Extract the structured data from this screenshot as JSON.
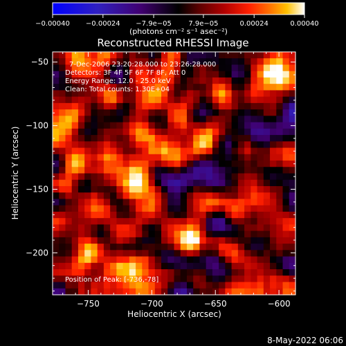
{
  "chart_data": {
    "type": "heatmap",
    "title": "Reconstructed RHESSI Image",
    "xlabel": "Heliocentric X (arcsec)",
    "ylabel": "Heliocentric Y (arcsec)",
    "xlim": [
      -778,
      -587
    ],
    "ylim": [
      -233,
      -42
    ],
    "x_ticks": [
      -750,
      -700,
      -650,
      -600
    ],
    "y_ticks": [
      -50,
      -100,
      -150,
      -200
    ],
    "x_tick_labels": [
      "−750",
      "−700",
      "−650",
      "−600"
    ],
    "y_tick_labels": [
      "−50",
      "−100",
      "−150",
      "−200"
    ],
    "colorbar": {
      "range": [
        -0.0004,
        0.0004
      ],
      "ticks": [
        -0.0004,
        -0.00024,
        -7.9e-05,
        7.9e-05,
        0.00024,
        0.0004
      ],
      "tick_labels": [
        "−0.00040",
        "−0.00024",
        "−7.9e−05",
        "7.9e−05",
        "0.00024",
        "0.00040"
      ],
      "units_label": "(photons cm⁻² s⁻¹ asec⁻²)",
      "stops": [
        "#0000ff",
        "#3020c0",
        "#400070",
        "#000000",
        "#5a0000",
        "#b00000",
        "#ff2000",
        "#ff7000",
        "#ffc000",
        "#ffffff"
      ]
    },
    "annotations": [
      "7-Dec-2006 23:20:28.000 to 23:26:28.000",
      "Detectors: 3F 4F 5F 6F 7F 8F, Att 0",
      "Energy Range: 12.0 - 25.0 keV",
      "Clean:  Total counts: 1.30E+04"
    ],
    "peak_label": "Position of Peak: [-736,-78]",
    "peak_position": [
      -736,
      -78
    ],
    "grid_size": [
      38,
      38
    ]
  },
  "footer": {
    "date": "8-May-2022 06:06"
  }
}
